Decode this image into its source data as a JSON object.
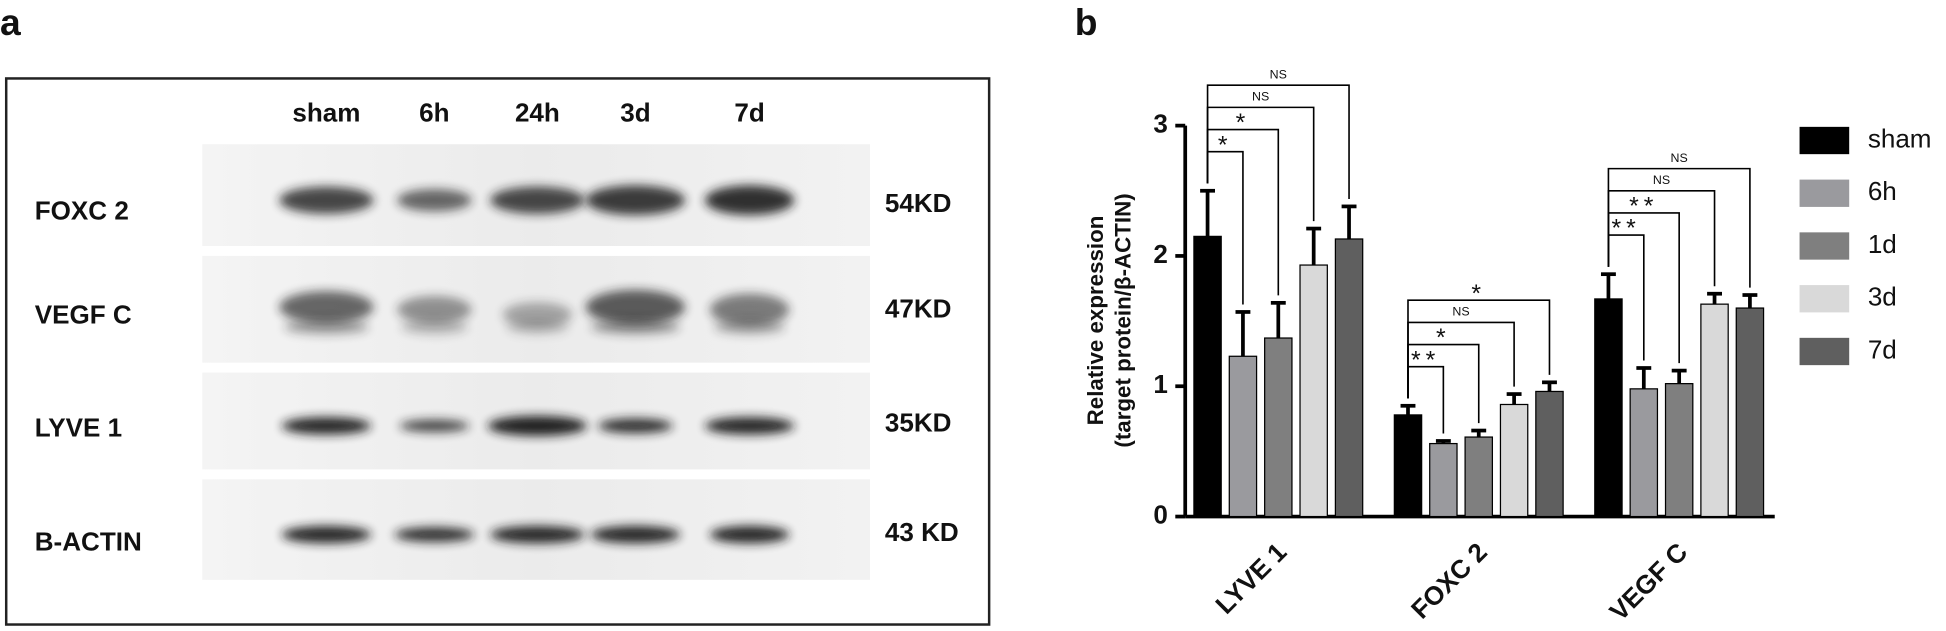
{
  "panel_labels": [
    "a",
    "b"
  ],
  "blot": {
    "lanes": [
      "sham",
      "6h",
      "24h",
      "3d",
      "7d"
    ],
    "rows": [
      {
        "label": "FOXC 2",
        "size": "54KD"
      },
      {
        "label": "VEGF C",
        "size": "47KD"
      },
      {
        "label": "LYVE 1",
        "size": "35KD"
      },
      {
        "label": "B-ACTIN",
        "size": "43 KD"
      }
    ]
  },
  "chart_data": {
    "type": "bar",
    "y_label": [
      "Relative  expression",
      "(target protein/β-ACTIN)"
    ],
    "categories": [
      "LYVE 1",
      "FOXC 2",
      "VEGF C"
    ],
    "series": [
      {
        "name": "sham",
        "color": "#000000",
        "values": [
          2.15,
          0.78,
          1.67
        ],
        "errors": [
          0.35,
          0.07,
          0.19
        ]
      },
      {
        "name": "6h",
        "color": "#9a9a9e",
        "values": [
          1.23,
          0.56,
          0.98
        ],
        "errors": [
          0.34,
          0.02,
          0.16
        ]
      },
      {
        "name": "1d",
        "color": "#7f7f7f",
        "values": [
          1.37,
          0.61,
          1.02
        ],
        "errors": [
          0.27,
          0.05,
          0.1
        ]
      },
      {
        "name": "3d",
        "color": "#d9d9d9",
        "values": [
          1.93,
          0.86,
          1.63
        ],
        "errors": [
          0.28,
          0.08,
          0.08
        ]
      },
      {
        "name": "7d",
        "color": "#5f5f5f",
        "values": [
          2.13,
          0.96,
          1.6
        ],
        "errors": [
          0.25,
          0.07,
          0.1
        ]
      }
    ],
    "significance": [
      [
        "*",
        "*",
        "NS",
        "NS"
      ],
      [
        "**",
        "*",
        "NS",
        "*"
      ],
      [
        "**",
        "**",
        "NS",
        "NS"
      ]
    ],
    "ylim": [
      0,
      3
    ],
    "yticks": [
      0,
      1,
      2,
      3
    ]
  }
}
